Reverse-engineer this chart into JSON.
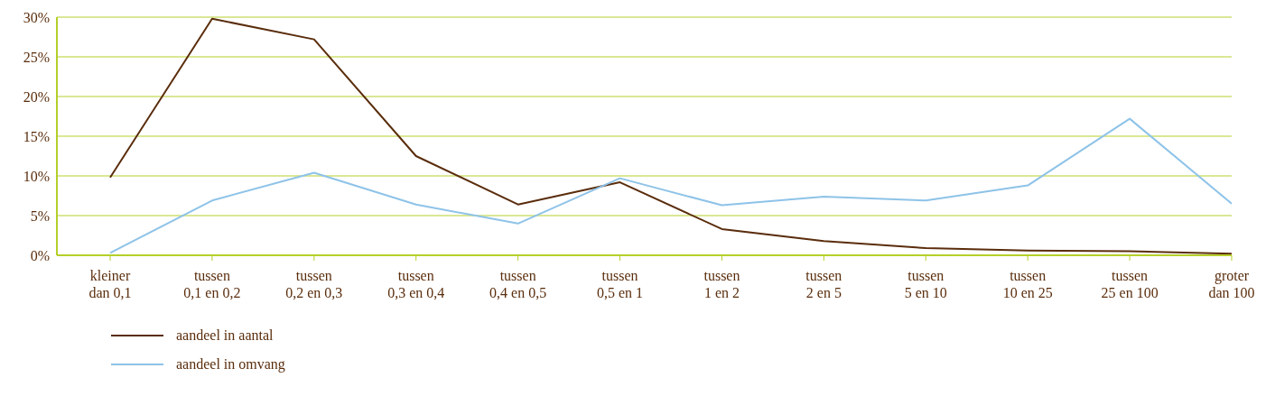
{
  "chart_data": {
    "type": "line",
    "categories": [
      "kleiner\ndan 0,1",
      "tussen\n0,1 en 0,2",
      "tussen\n0,2 en 0,3",
      "tussen\n0,3 en 0,4",
      "tussen\n0,4 en 0,5",
      "tussen\n0,5 en 1",
      "tussen\n1 en 2",
      "tussen\n2 en 5",
      "tussen\n5 en 10",
      "tussen\n10 en 25",
      "tussen\n25 en 100",
      "groter\ndan 100"
    ],
    "series": [
      {
        "name": "aandeel in aantal",
        "color": "#5a2d0c",
        "values": [
          9.8,
          29.8,
          27.2,
          12.5,
          6.4,
          9.2,
          3.3,
          1.8,
          0.9,
          0.6,
          0.5,
          0.2
        ]
      },
      {
        "name": "aandeel in omvang",
        "color": "#8ec3e8",
        "values": [
          0.3,
          6.9,
          10.4,
          6.4,
          4.0,
          9.7,
          6.3,
          7.4,
          6.9,
          8.8,
          17.2,
          6.5
        ]
      }
    ],
    "ylim": [
      0,
      30
    ],
    "yticks": [
      {
        "value": 0,
        "label": "0%"
      },
      {
        "value": 5,
        "label": "5%"
      },
      {
        "value": 10,
        "label": "10%"
      },
      {
        "value": 15,
        "label": "15%"
      },
      {
        "value": 20,
        "label": "20%"
      },
      {
        "value": 25,
        "label": "25%"
      },
      {
        "value": 30,
        "label": "30%"
      }
    ],
    "grid": "y",
    "legend": "bottom left",
    "marker": "none",
    "line_style": "solid"
  }
}
